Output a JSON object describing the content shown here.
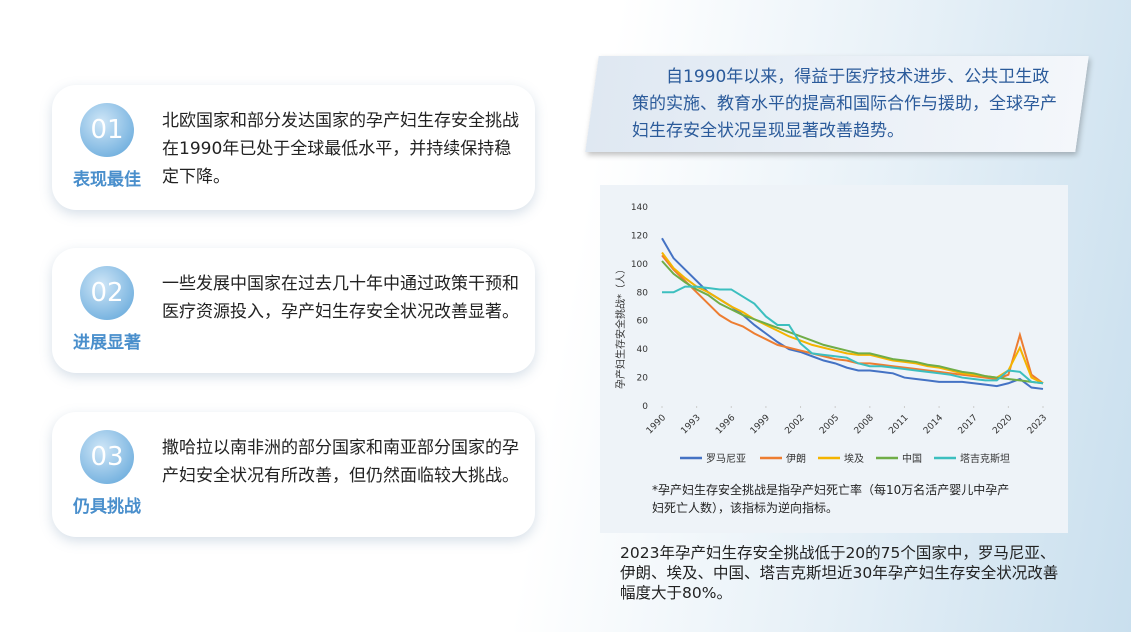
{
  "cards": [
    {
      "number": "01",
      "label": "表现最佳",
      "text": "北欧国家和部分发达国家的孕产妇生存安全挑战在1990年已处于全球最低水平，并持续保持稳定下降。"
    },
    {
      "number": "02",
      "label": "进展显著",
      "text": "一些发展中国家在过去几十年中通过政策干预和医疗资源投入，孕产妇生存安全状况改善显著。"
    },
    {
      "number": "03",
      "label": "仍具挑战",
      "text": "撒哈拉以南非洲的部分国家和南亚部分国家的孕产妇安全状况有所改善，但仍然面临较大挑战。"
    }
  ],
  "intro": "自1990年以来，得益于医疗技术进步、公共卫生政策的实施、教育水平的提高和国际合作与援助，全球孕产妇生存安全状况呈现显著改善趋势。",
  "chart_data": {
    "type": "line",
    "y_label": "孕产妇生存安全挑战*（人）",
    "x": [
      1990,
      1991,
      1992,
      1993,
      1994,
      1995,
      1996,
      1997,
      1998,
      1999,
      2000,
      2001,
      2002,
      2003,
      2004,
      2005,
      2006,
      2007,
      2008,
      2009,
      2010,
      2011,
      2012,
      2013,
      2014,
      2015,
      2016,
      2017,
      2018,
      2019,
      2020,
      2021,
      2022,
      2023
    ],
    "xlim": [
      1990,
      2023
    ],
    "xticks": [
      1990,
      1993,
      1996,
      1999,
      2002,
      2005,
      2008,
      2011,
      2014,
      2017,
      2020,
      2023
    ],
    "ylim": [
      0,
      140
    ],
    "yticks": [
      0,
      20,
      40,
      60,
      80,
      100,
      120,
      140
    ],
    "series": [
      {
        "name": "罗马尼亚",
        "color": "#4472c4",
        "values": [
          118,
          104,
          96,
          88,
          80,
          75,
          70,
          64,
          57,
          51,
          45,
          40,
          38,
          35,
          32,
          30,
          27,
          25,
          25,
          24,
          23,
          20,
          19,
          18,
          17,
          17,
          17,
          16,
          15,
          14,
          16,
          19,
          13,
          12
        ]
      },
      {
        "name": "伊朗",
        "color": "#ed7d31",
        "values": [
          106,
          96,
          88,
          80,
          72,
          64,
          59,
          56,
          51,
          47,
          43,
          41,
          39,
          37,
          35,
          33,
          32,
          30,
          30,
          29,
          28,
          27,
          26,
          25,
          24,
          23,
          22,
          21,
          20,
          19,
          22,
          50,
          22,
          16
        ]
      },
      {
        "name": "埃及",
        "color": "#f4b400",
        "values": [
          108,
          97,
          90,
          84,
          80,
          75,
          70,
          66,
          61,
          57,
          53,
          49,
          46,
          43,
          41,
          39,
          37,
          36,
          36,
          34,
          32,
          31,
          30,
          28,
          27,
          25,
          23,
          22,
          21,
          20,
          25,
          41,
          20,
          16
        ]
      },
      {
        "name": "中国",
        "color": "#70ad47",
        "values": [
          102,
          93,
          87,
          82,
          78,
          72,
          68,
          64,
          61,
          58,
          55,
          52,
          49,
          46,
          43,
          41,
          39,
          37,
          37,
          35,
          33,
          32,
          31,
          29,
          28,
          26,
          24,
          23,
          21,
          20,
          19,
          18,
          17,
          16
        ]
      },
      {
        "name": "塔吉克斯坦",
        "color": "#3cbfbf",
        "values": [
          80,
          80,
          84,
          84,
          83,
          82,
          82,
          77,
          72,
          63,
          57,
          57,
          44,
          37,
          36,
          35,
          34,
          30,
          28,
          28,
          27,
          26,
          25,
          24,
          23,
          22,
          20,
          19,
          18,
          18,
          25,
          24,
          17,
          16
        ]
      }
    ]
  },
  "note": "*孕产妇生存安全挑战是指孕产妇死亡率（每10万名活产婴儿中孕产妇死亡人数），该指标为逆向指标。",
  "summary": "2023年孕产妇生存安全挑战低于20的75个国家中，罗马尼亚、伊朗、埃及、中国、塔吉克斯坦近30年孕产妇生存安全状况改善幅度大于80%。"
}
